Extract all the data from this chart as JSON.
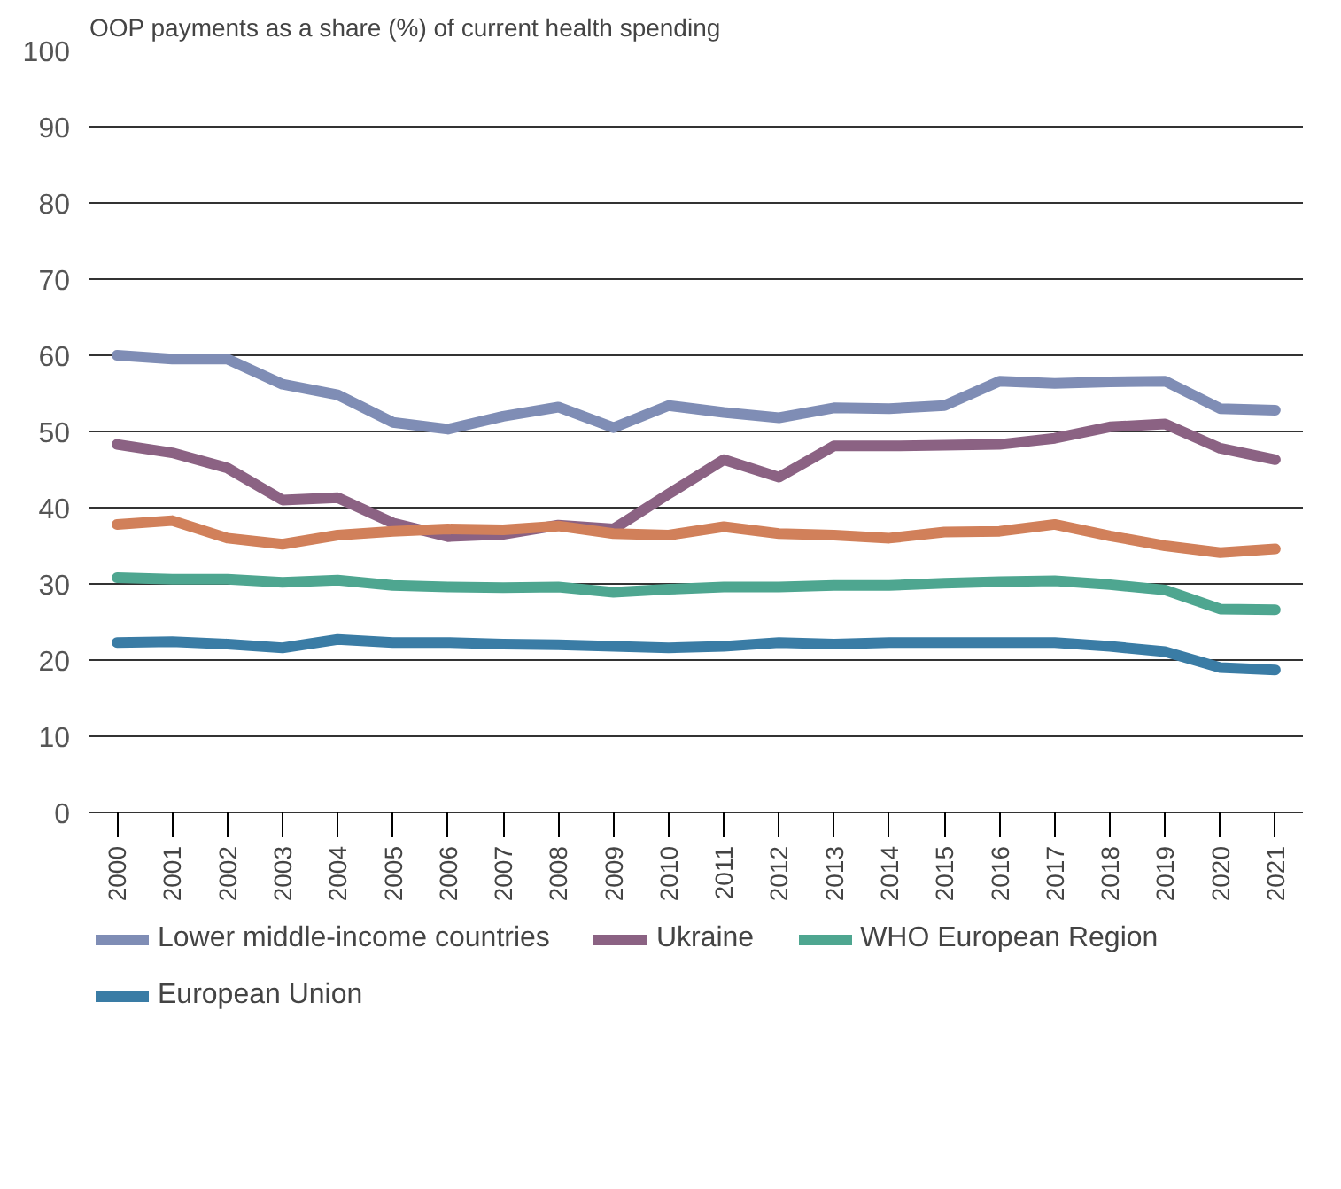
{
  "chart_data": {
    "type": "line",
    "title": "OOP payments as a share (%) of current health spending",
    "categories": [
      "2000",
      "2001",
      "2002",
      "2003",
      "2004",
      "2005",
      "2006",
      "2007",
      "2008",
      "2009",
      "2010",
      "2011",
      "2012",
      "2013",
      "2014",
      "2015",
      "2016",
      "2017",
      "2018",
      "2019",
      "2020",
      "2021"
    ],
    "series": [
      {
        "name": "Lower middle-income countries",
        "color": "#7f8db5",
        "values": [
          60,
          59.5,
          59.5,
          56.2,
          54.8,
          51.2,
          50.3,
          52,
          53.2,
          50.5,
          53.4,
          52.5,
          51.8,
          53.1,
          53,
          53.4,
          56.6,
          56.3,
          56.5,
          56.6,
          53,
          52.8
        ]
      },
      {
        "name": "Ukraine",
        "color": "#8b6283",
        "values": [
          48.3,
          47.2,
          45.2,
          41,
          41.3,
          38,
          36.2,
          36.5,
          37.7,
          37.2,
          41.8,
          46.3,
          44,
          48.1,
          48.1,
          48.2,
          48.3,
          49.1,
          50.6,
          51,
          47.8,
          46.3
        ]
      },
      {
        "color": "#d1805a",
        "values": [
          37.8,
          38.3,
          36,
          35.2,
          36.4,
          36.9,
          37.2,
          37.1,
          37.6,
          36.6,
          36.4,
          37.5,
          36.6,
          36.4,
          36,
          36.8,
          36.9,
          37.8,
          36.3,
          35,
          34.1,
          34.6
        ]
      },
      {
        "name": "WHO European Region",
        "color": "#4ea690",
        "values": [
          30.8,
          30.6,
          30.6,
          30.2,
          30.5,
          29.8,
          29.6,
          29.5,
          29.6,
          28.9,
          29.3,
          29.6,
          29.6,
          29.8,
          29.8,
          30.1,
          30.3,
          30.4,
          29.9,
          29.2,
          26.7,
          26.6
        ]
      },
      {
        "name": "European Union",
        "color": "#3a7ca5",
        "values": [
          22.3,
          22.4,
          22.1,
          21.6,
          22.7,
          22.3,
          22.3,
          22.1,
          22,
          21.8,
          21.6,
          21.8,
          22.3,
          22.1,
          22.3,
          22.3,
          22.3,
          22.3,
          21.8,
          21.1,
          19,
          18.7
        ]
      }
    ],
    "ylim": [
      0,
      100
    ],
    "yticks": [
      0,
      10,
      20,
      30,
      40,
      50,
      60,
      70,
      80,
      90,
      100
    ],
    "grid": "y",
    "legend": "bottom"
  }
}
